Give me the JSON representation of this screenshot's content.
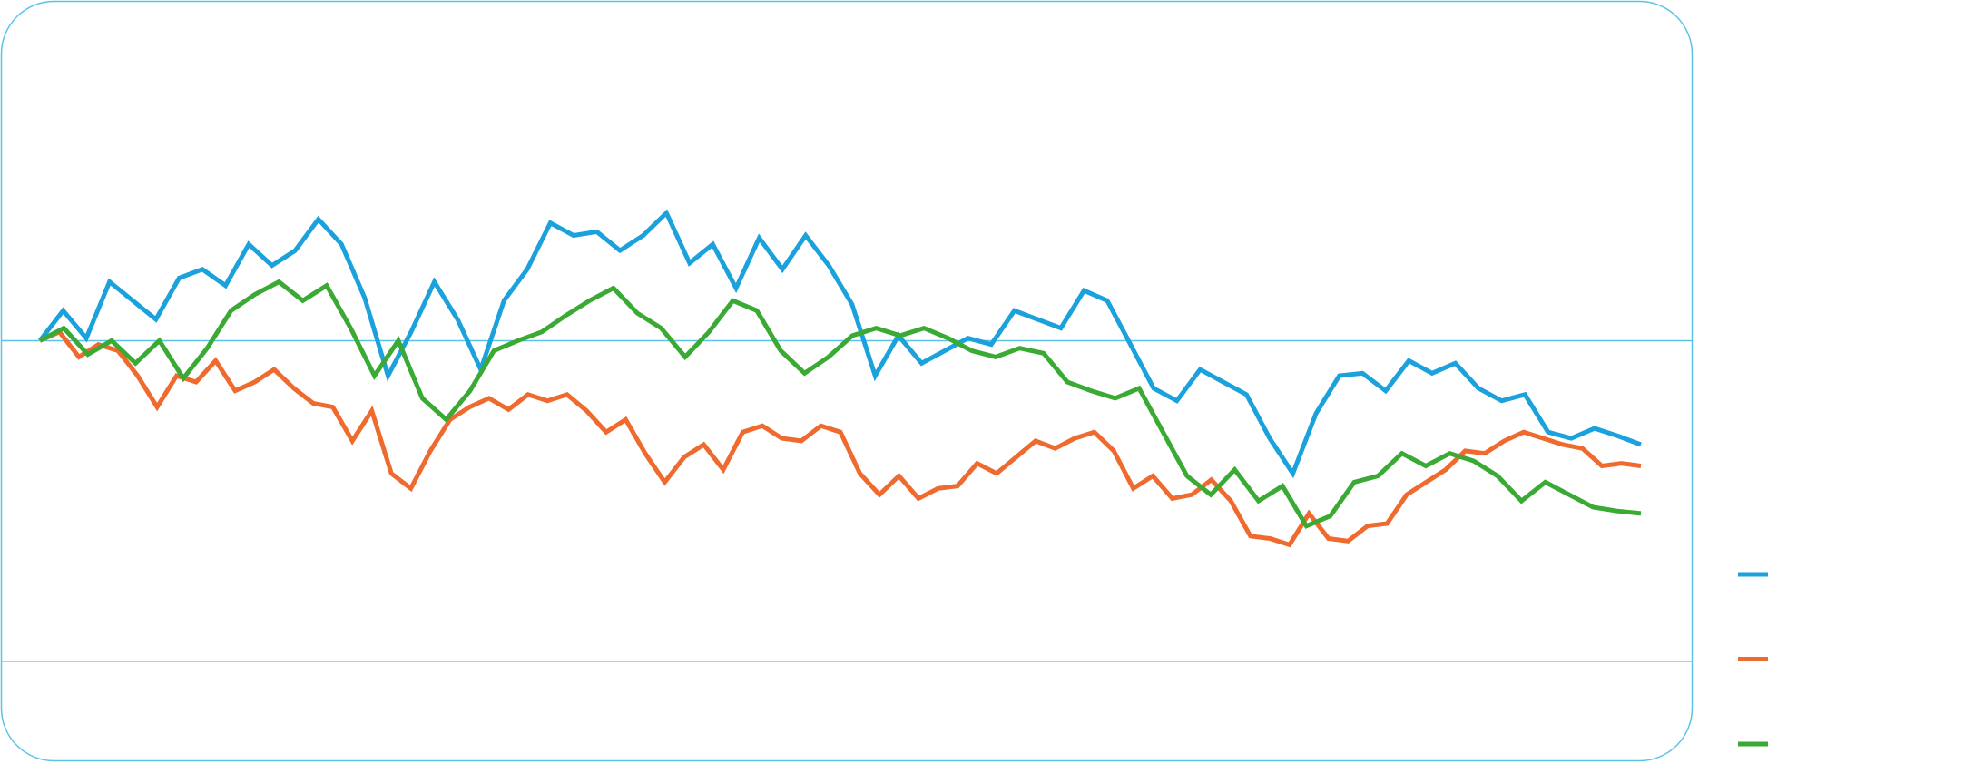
{
  "chart_data": {
    "type": "line",
    "ylim": [
      -338,
      272
    ],
    "yticks": [
      0,
      -256
    ],
    "grid": true,
    "legend": "right",
    "series": [
      {
        "color": "#1ba1dc",
        "values": [
          0,
          24,
          2,
          47,
          32,
          17,
          50,
          57,
          44,
          77,
          60,
          72,
          97,
          77,
          34,
          -28,
          7,
          47,
          17,
          -23,
          32,
          57,
          94,
          84,
          87,
          72,
          84,
          102,
          62,
          77,
          42,
          82,
          57,
          84,
          60,
          29,
          -28,
          4,
          -18,
          -8,
          2,
          -3,
          24,
          17,
          10,
          40,
          32,
          -3,
          -38,
          -48,
          -23,
          -33,
          -43,
          -78,
          -106,
          -58,
          -28,
          -26,
          -40,
          -16,
          -26,
          -18,
          -38,
          -48,
          -43,
          -73,
          -78,
          -70,
          -76,
          -83
        ]
      },
      {
        "color": "#ef6a2e",
        "values": [
          0,
          7,
          -13,
          -3,
          -8,
          -28,
          -53,
          -28,
          -33,
          -16,
          -40,
          -33,
          -23,
          -38,
          -50,
          -53,
          -80,
          -56,
          -106,
          -118,
          -88,
          -63,
          -53,
          -46,
          -55,
          -43,
          -48,
          -43,
          -56,
          -73,
          -63,
          -90,
          -113,
          -93,
          -83,
          -103,
          -73,
          -68,
          -78,
          -80,
          -68,
          -73,
          -106,
          -123,
          -108,
          -126,
          -118,
          -116,
          -98,
          -106,
          -93,
          -80,
          -86,
          -78,
          -73,
          -88,
          -118,
          -108,
          -126,
          -123,
          -111,
          -128,
          -156,
          -158,
          -163,
          -138,
          -158,
          -160,
          -148,
          -146,
          -123,
          -113,
          -103,
          -88,
          -90,
          -80,
          -73,
          -78,
          -83,
          -86,
          -100,
          -98,
          -100
        ]
      },
      {
        "color": "#3aaa35",
        "values": [
          0,
          10,
          -11,
          0,
          -18,
          0,
          -30,
          -6,
          24,
          37,
          47,
          32,
          44,
          10,
          -28,
          0,
          -46,
          -63,
          -40,
          -8,
          0,
          7,
          20,
          32,
          42,
          22,
          10,
          -13,
          7,
          32,
          24,
          -8,
          -26,
          -13,
          4,
          10,
          4,
          10,
          2,
          -8,
          -13,
          -6,
          -10,
          -33,
          -40,
          -46,
          -38,
          -73,
          -108,
          -123,
          -103,
          -128,
          -116,
          -148,
          -140,
          -113,
          -108,
          -90,
          -100,
          -90,
          -96,
          -108,
          -128,
          -113,
          -123,
          -133,
          -136,
          -138
        ]
      }
    ]
  }
}
